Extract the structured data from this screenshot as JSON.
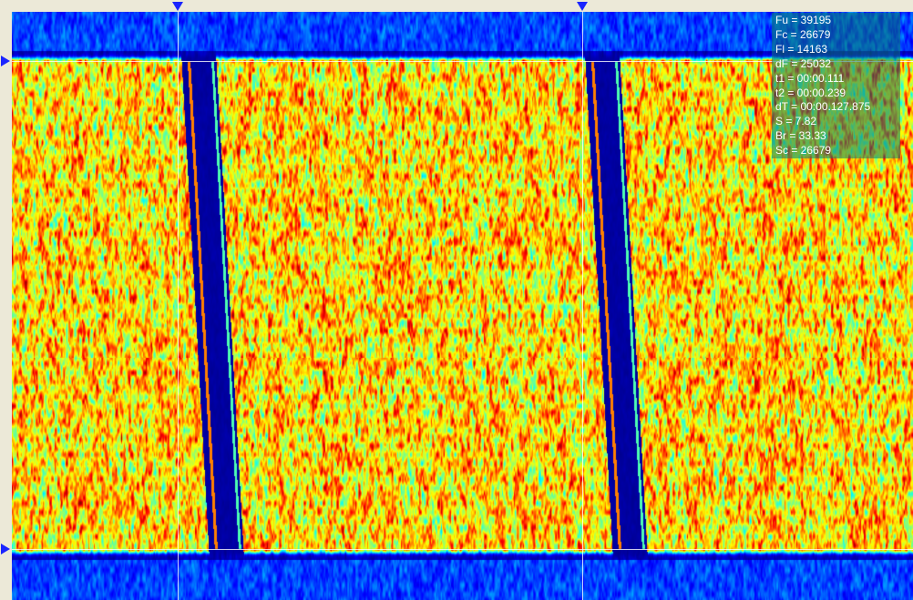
{
  "colors": {
    "window_bg": "#ece9d8",
    "marker": "#1a24ff",
    "cursor_line": "#ffffff",
    "info_panel_bg": "#0a786e"
  },
  "spectrogram": {
    "colormap": "jet",
    "markers": [
      "time-cursor-1",
      "time-cursor-2",
      "upper-frequency-cursor",
      "lower-frequency-cursor"
    ]
  },
  "info": {
    "fu": "Fu = 39195",
    "fc": "Fc = 26679",
    "fl": "Fl = 14163",
    "df": "dF = 25032",
    "t1": "t1 = 00:00.111",
    "t2": "t2 = 00:00.239",
    "dt": "dT = 00:00.127.875",
    "s": "S = 7.82",
    "br": "Br = 33.33",
    "sc": "Sc = 26679"
  }
}
